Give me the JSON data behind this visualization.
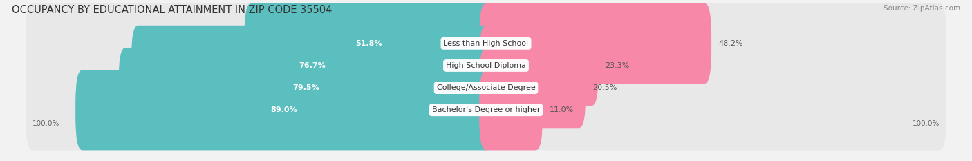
{
  "title": "OCCUPANCY BY EDUCATIONAL ATTAINMENT IN ZIP CODE 35504",
  "source": "Source: ZipAtlas.com",
  "categories": [
    "Less than High School",
    "High School Diploma",
    "College/Associate Degree",
    "Bachelor's Degree or higher"
  ],
  "owner_pct": [
    51.8,
    76.7,
    79.5,
    89.0
  ],
  "renter_pct": [
    48.2,
    23.3,
    20.5,
    11.0
  ],
  "owner_color": "#5bbfbf",
  "renter_color": "#f888a8",
  "bg_color": "#f2f2f2",
  "bar_bg_color": "#e8e8e8",
  "title_fontsize": 10.5,
  "source_fontsize": 7.5,
  "cat_fontsize": 8,
  "pct_fontsize": 8,
  "legend_fontsize": 8.5,
  "axis_label_fontsize": 7.5,
  "bar_height": 0.62,
  "axis_bottom_left": "100.0%",
  "axis_bottom_right": "100.0%"
}
